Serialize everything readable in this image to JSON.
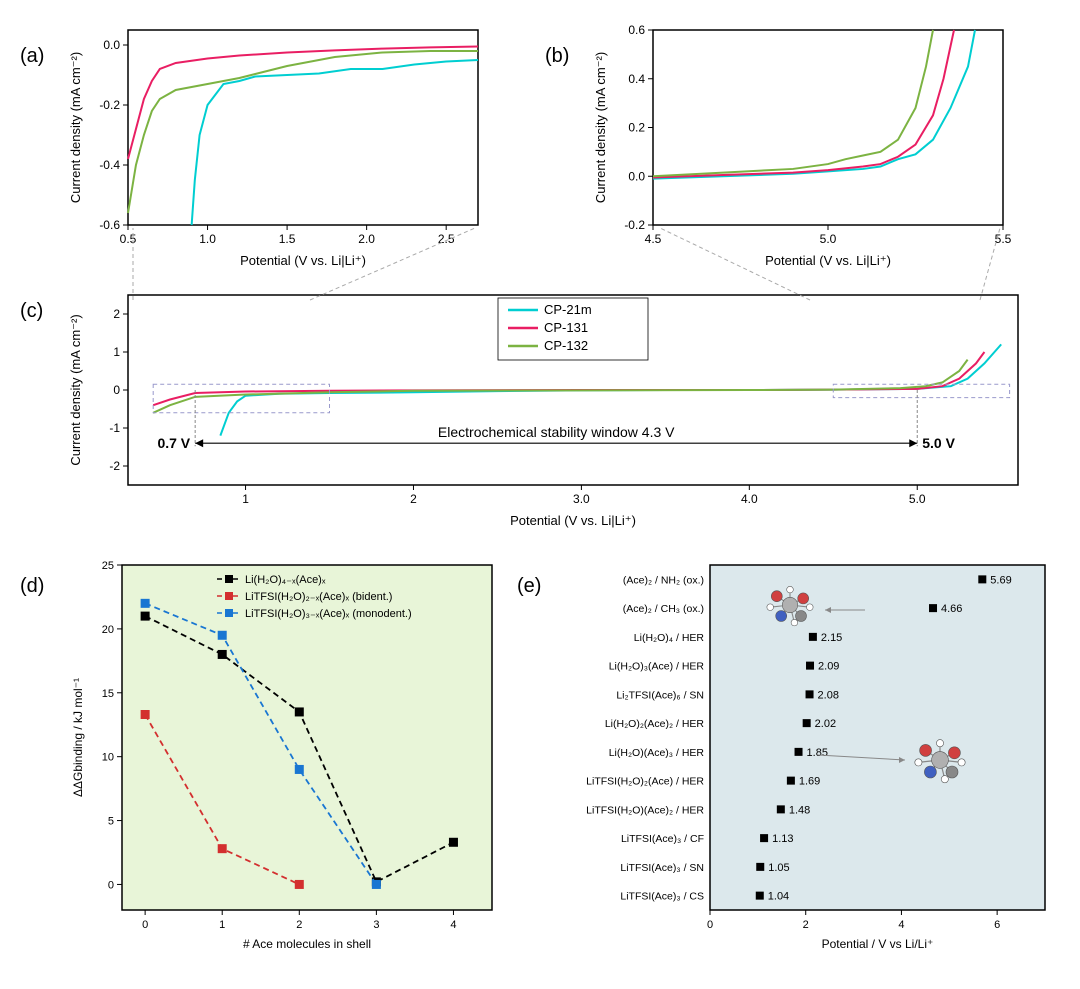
{
  "labels": {
    "a": "(a)",
    "b": "(b)",
    "c": "(c)",
    "d": "(d)",
    "e": "(e)"
  },
  "colors": {
    "cp21m": "#00ced1",
    "cp131": "#e91e63",
    "cp132": "#7cb342",
    "black": "#000000",
    "red": "#d32f2f",
    "blue": "#1976d2",
    "panel_d_bg": "#e8f5d8",
    "panel_e_bg": "#dce8ec",
    "dash_box": "#9999cc"
  },
  "panel_a": {
    "type": "line",
    "xlabel": "Potential (V vs. Li|Li⁺)",
    "ylabel": "Current density (mA cm⁻²)",
    "xlim": [
      0.5,
      2.7
    ],
    "ylim": [
      -0.6,
      0.05
    ],
    "xticks": [
      0.5,
      1.0,
      1.5,
      2.0,
      2.5
    ],
    "yticks": [
      -0.6,
      -0.4,
      -0.2,
      0.0
    ],
    "label_fontsize": 13,
    "tick_fontsize": 12,
    "series": {
      "cp21m": [
        [
          0.9,
          -0.6
        ],
        [
          0.92,
          -0.45
        ],
        [
          0.95,
          -0.3
        ],
        [
          1.0,
          -0.2
        ],
        [
          1.1,
          -0.13
        ],
        [
          1.2,
          -0.12
        ],
        [
          1.3,
          -0.105
        ],
        [
          1.5,
          -0.1
        ],
        [
          1.7,
          -0.095
        ],
        [
          1.9,
          -0.08
        ],
        [
          2.1,
          -0.08
        ],
        [
          2.3,
          -0.065
        ],
        [
          2.5,
          -0.055
        ],
        [
          2.7,
          -0.05
        ]
      ],
      "cp131": [
        [
          0.5,
          -0.38
        ],
        [
          0.55,
          -0.28
        ],
        [
          0.6,
          -0.18
        ],
        [
          0.65,
          -0.12
        ],
        [
          0.7,
          -0.08
        ],
        [
          0.8,
          -0.06
        ],
        [
          1.0,
          -0.045
        ],
        [
          1.2,
          -0.035
        ],
        [
          1.5,
          -0.025
        ],
        [
          1.8,
          -0.018
        ],
        [
          2.1,
          -0.012
        ],
        [
          2.4,
          -0.008
        ],
        [
          2.7,
          -0.005
        ]
      ],
      "cp132": [
        [
          0.5,
          -0.56
        ],
        [
          0.55,
          -0.4
        ],
        [
          0.6,
          -0.3
        ],
        [
          0.65,
          -0.22
        ],
        [
          0.7,
          -0.18
        ],
        [
          0.8,
          -0.15
        ],
        [
          1.0,
          -0.13
        ],
        [
          1.2,
          -0.11
        ],
        [
          1.5,
          -0.07
        ],
        [
          1.8,
          -0.04
        ],
        [
          2.1,
          -0.025
        ],
        [
          2.4,
          -0.02
        ],
        [
          2.7,
          -0.02
        ]
      ]
    }
  },
  "panel_b": {
    "type": "line",
    "xlabel": "Potential (V vs. Li|Li⁺)",
    "ylabel": "Current density (mA cm⁻²)",
    "xlim": [
      4.5,
      5.5
    ],
    "ylim": [
      -0.2,
      0.6
    ],
    "xticks": [
      4.5,
      5.0,
      5.5
    ],
    "yticks": [
      -0.2,
      0.0,
      0.2,
      0.4,
      0.6
    ],
    "label_fontsize": 13,
    "tick_fontsize": 12,
    "series": {
      "cp21m": [
        [
          4.5,
          -0.01
        ],
        [
          4.7,
          0.0
        ],
        [
          4.9,
          0.01
        ],
        [
          5.0,
          0.02
        ],
        [
          5.1,
          0.03
        ],
        [
          5.15,
          0.04
        ],
        [
          5.2,
          0.07
        ],
        [
          5.25,
          0.09
        ],
        [
          5.3,
          0.15
        ],
        [
          5.35,
          0.28
        ],
        [
          5.4,
          0.45
        ],
        [
          5.42,
          0.6
        ]
      ],
      "cp131": [
        [
          4.5,
          -0.005
        ],
        [
          4.7,
          0.005
        ],
        [
          4.9,
          0.015
        ],
        [
          5.0,
          0.025
        ],
        [
          5.1,
          0.04
        ],
        [
          5.15,
          0.05
        ],
        [
          5.2,
          0.08
        ],
        [
          5.25,
          0.13
        ],
        [
          5.3,
          0.25
        ],
        [
          5.33,
          0.4
        ],
        [
          5.36,
          0.6
        ]
      ],
      "cp132": [
        [
          4.5,
          0.0
        ],
        [
          4.7,
          0.015
        ],
        [
          4.9,
          0.03
        ],
        [
          5.0,
          0.05
        ],
        [
          5.05,
          0.07
        ],
        [
          5.1,
          0.085
        ],
        [
          5.15,
          0.1
        ],
        [
          5.2,
          0.15
        ],
        [
          5.25,
          0.28
        ],
        [
          5.28,
          0.45
        ],
        [
          5.3,
          0.6
        ]
      ]
    }
  },
  "panel_c": {
    "type": "line",
    "xlabel": "Potential (V vs. Li|Li⁺)",
    "ylabel": "Current density (mA cm⁻²)",
    "xlim": [
      0.3,
      5.6
    ],
    "ylim": [
      -2.5,
      2.5
    ],
    "xticks": [
      1.0,
      2.0,
      3.0,
      4.0,
      5.0
    ],
    "yticks": [
      -2,
      -1,
      0,
      1,
      2
    ],
    "label_fontsize": 13,
    "tick_fontsize": 12,
    "legend_items": [
      "CP-21m",
      "CP-131",
      "CP-132"
    ],
    "annotation_text": "Electrochemical stability window 4.3 V",
    "annotation_left": "0.7 V",
    "annotation_right": "5.0 V",
    "series": {
      "cp21m": [
        [
          0.85,
          -1.2
        ],
        [
          0.9,
          -0.6
        ],
        [
          0.95,
          -0.3
        ],
        [
          1.0,
          -0.15
        ],
        [
          1.2,
          -0.1
        ],
        [
          1.5,
          -0.08
        ],
        [
          2.0,
          -0.06
        ],
        [
          2.5,
          -0.03
        ],
        [
          3.0,
          -0.01
        ],
        [
          3.5,
          0.0
        ],
        [
          4.0,
          0.0
        ],
        [
          4.5,
          0.01
        ],
        [
          5.0,
          0.03
        ],
        [
          5.2,
          0.1
        ],
        [
          5.3,
          0.3
        ],
        [
          5.4,
          0.7
        ],
        [
          5.5,
          1.2
        ]
      ],
      "cp131": [
        [
          0.45,
          -0.4
        ],
        [
          0.55,
          -0.25
        ],
        [
          0.7,
          -0.08
        ],
        [
          1.0,
          -0.04
        ],
        [
          1.5,
          -0.02
        ],
        [
          2.0,
          -0.01
        ],
        [
          3.0,
          0.0
        ],
        [
          4.0,
          0.0
        ],
        [
          4.5,
          0.01
        ],
        [
          5.0,
          0.03
        ],
        [
          5.15,
          0.1
        ],
        [
          5.25,
          0.3
        ],
        [
          5.35,
          0.7
        ],
        [
          5.4,
          1.0
        ]
      ],
      "cp132": [
        [
          0.45,
          -0.6
        ],
        [
          0.55,
          -0.4
        ],
        [
          0.7,
          -0.18
        ],
        [
          1.0,
          -0.12
        ],
        [
          1.5,
          -0.06
        ],
        [
          2.0,
          -0.02
        ],
        [
          3.0,
          -0.01
        ],
        [
          4.0,
          0.0
        ],
        [
          4.5,
          0.01
        ],
        [
          4.9,
          0.05
        ],
        [
          5.05,
          0.1
        ],
        [
          5.15,
          0.2
        ],
        [
          5.25,
          0.5
        ],
        [
          5.3,
          0.8
        ]
      ]
    }
  },
  "panel_d": {
    "type": "line",
    "xlabel": "# Ace molecules in shell",
    "ylabel": "ΔΔGbinding / kJ mol⁻¹",
    "xlim": [
      -0.3,
      4.5
    ],
    "ylim": [
      -2,
      25
    ],
    "xticks": [
      0,
      1,
      2,
      3,
      4
    ],
    "yticks": [
      0,
      5,
      10,
      15,
      20,
      25
    ],
    "label_fontsize": 12,
    "tick_fontsize": 11,
    "legend_items": [
      "Li(H₂O)₄₋ₓ(Ace)ₓ",
      "LiTFSI(H₂O)₂₋ₓ(Ace)ₓ (bident.)",
      "LiTFSI(H₂O)₃₋ₓ(Ace)ₓ (monodent.)"
    ],
    "series": {
      "black": [
        [
          0,
          21
        ],
        [
          1,
          18
        ],
        [
          2,
          13.5
        ],
        [
          3,
          0.2
        ],
        [
          4,
          3.3
        ]
      ],
      "red": [
        [
          0,
          13.3
        ],
        [
          1,
          2.8
        ],
        [
          2,
          0.0
        ]
      ],
      "blue": [
        [
          0,
          22
        ],
        [
          1,
          19.5
        ],
        [
          2,
          9
        ],
        [
          3,
          0.0
        ]
      ]
    }
  },
  "panel_e": {
    "type": "scatter",
    "xlabel": "Potential / V vs Li/Li⁺",
    "xlim": [
      0,
      7
    ],
    "xticks": [
      0,
      2,
      4,
      6
    ],
    "label_fontsize": 12,
    "tick_fontsize": 11,
    "categories": [
      {
        "label": "(Ace)₂ / NH₂ (ox.)",
        "value": 5.69
      },
      {
        "label": "(Ace)₂ / CH₃ (ox.)",
        "value": 4.66
      },
      {
        "label": "Li(H₂O)₄ / HER",
        "value": 2.15
      },
      {
        "label": "Li(H₂O)₃(Ace) / HER",
        "value": 2.09
      },
      {
        "label": "Li₂TFSI(Ace)₆ / SN",
        "value": 2.08
      },
      {
        "label": "Li(H₂O)₂(Ace)₂ / HER",
        "value": 2.02
      },
      {
        "label": "Li(H₂O)(Ace)₃ / HER",
        "value": 1.85
      },
      {
        "label": "LiTFSI(H₂O)₂(Ace) / HER",
        "value": 1.69
      },
      {
        "label": "LiTFSI(H₂O)(Ace)₂ / HER",
        "value": 1.48
      },
      {
        "label": "LiTFSI(Ace)₃ / CF",
        "value": 1.13
      },
      {
        "label": "LiTFSI(Ace)₃ / SN",
        "value": 1.05
      },
      {
        "label": "LiTFSI(Ace)₃ / CS",
        "value": 1.04
      }
    ]
  }
}
